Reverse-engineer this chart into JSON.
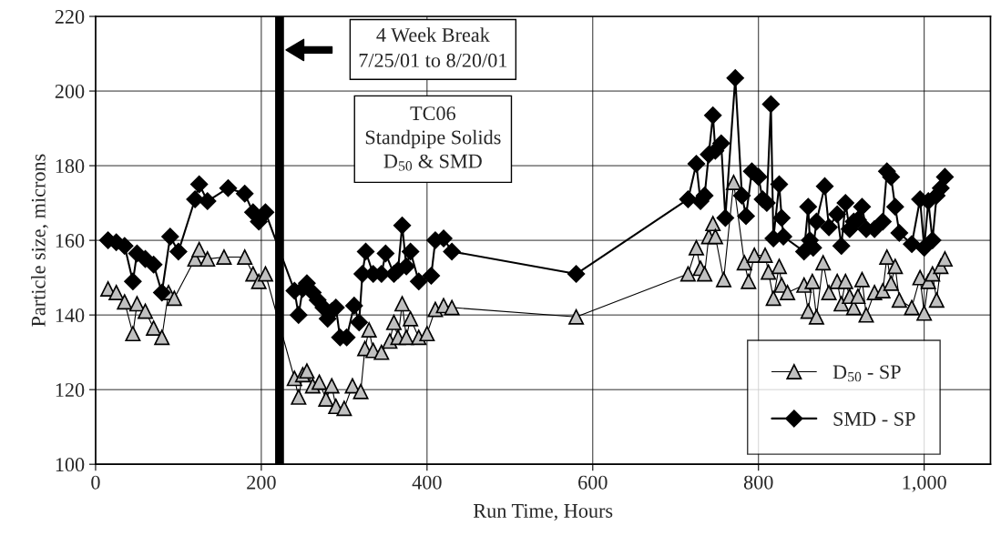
{
  "chart_data": {
    "type": "line",
    "title": "TC06\nStandpipe Solids\nD$_{50}$ & SMD",
    "xlabel": "Run Time, Hours",
    "ylabel": "Particle size, microns",
    "xlim": [
      0,
      1080
    ],
    "xticks": [
      0,
      200,
      400,
      600,
      800,
      {
        "value": 1000,
        "label": "1,000"
      }
    ],
    "ylim": [
      100,
      220
    ],
    "yticks": [
      100,
      120,
      140,
      160,
      180,
      200,
      220
    ],
    "grid": true,
    "legend": "bottom right",
    "ref_lines": [
      {
        "axis": "x",
        "value": 222,
        "color": "#000000"
      }
    ],
    "annotations": [
      "4 Week Break\n7/25/01 to 8/20/01"
    ],
    "series": [
      {
        "name": "D$_{50}$ - SP",
        "color": "#c0c0c0",
        "marker": "triangle",
        "x": [
          15,
          25,
          35,
          45,
          50,
          60,
          70,
          80,
          88,
          95,
          120,
          125,
          135,
          155,
          180,
          190,
          197,
          205,
          240,
          245,
          250,
          255,
          262,
          270,
          278,
          285,
          290,
          300,
          310,
          320,
          325,
          330,
          335,
          345,
          355,
          360,
          365,
          370,
          375,
          380,
          390,
          400,
          410,
          420,
          430,
          580,
          715,
          725,
          730,
          735,
          740,
          745,
          748,
          758,
          770,
          783,
          788,
          795,
          808,
          812,
          818,
          825,
          828,
          835,
          855,
          860,
          865,
          870,
          878,
          885,
          895,
          900,
          905,
          910,
          915,
          920,
          925,
          930,
          940,
          950,
          955,
          960,
          965,
          970,
          985,
          995,
          1000,
          1005,
          1010,
          1015,
          1020,
          1025
        ],
        "values": [
          147,
          146,
          143.5,
          135,
          143,
          141,
          136.5,
          134,
          146,
          144.5,
          155,
          157.5,
          155,
          155.5,
          155.5,
          151,
          149,
          151,
          123,
          118,
          124,
          125,
          121,
          122,
          117.5,
          121,
          115.5,
          115,
          121,
          119.5,
          131,
          136,
          130.5,
          130,
          133,
          138,
          134,
          143,
          134,
          139,
          134,
          135,
          141.5,
          142.5,
          142,
          139.5,
          151,
          158,
          152.5,
          151,
          161,
          164.5,
          161,
          149.5,
          175.5,
          154,
          149,
          156,
          156,
          151.5,
          144.5,
          153,
          148,
          146,
          148,
          141,
          149,
          139.5,
          154,
          146,
          149,
          143,
          149,
          145,
          142,
          145,
          149.5,
          140,
          146,
          146.5,
          155.5,
          148.5,
          153,
          144,
          142,
          150,
          140.5,
          149,
          151,
          144,
          153,
          155
        ]
      },
      {
        "name": "SMD - SP",
        "color": "#000000",
        "marker": "diamond",
        "x": [
          15,
          25,
          35,
          45,
          50,
          60,
          70,
          80,
          90,
          100,
          120,
          125,
          135,
          160,
          180,
          190,
          197,
          205,
          240,
          245,
          250,
          255,
          262,
          268,
          275,
          280,
          285,
          290,
          295,
          303,
          312,
          318,
          322,
          326,
          335,
          345,
          350,
          360,
          365,
          370,
          375,
          380,
          390,
          405,
          410,
          420,
          430,
          580,
          715,
          725,
          730,
          735,
          740,
          745,
          748,
          755,
          760,
          772,
          780,
          785,
          792,
          800,
          805,
          810,
          815,
          818,
          825,
          828,
          830,
          855,
          860,
          862,
          866,
          870,
          880,
          885,
          895,
          900,
          905,
          910,
          915,
          920,
          925,
          930,
          940,
          950,
          955,
          960,
          965,
          970,
          985,
          995,
          1000,
          1005,
          1010,
          1015,
          1020,
          1025
        ],
        "values": [
          160,
          159.5,
          158.5,
          149,
          156.5,
          155,
          153.5,
          146,
          161,
          157,
          171,
          175,
          170.5,
          174,
          172.5,
          167.5,
          165,
          167.5,
          146.5,
          140,
          147,
          148.5,
          146,
          144,
          142,
          139,
          141,
          142,
          134,
          134,
          142.5,
          138,
          151,
          157,
          151,
          151,
          156.5,
          151,
          152,
          164,
          153,
          157,
          149,
          150.5,
          160,
          160.5,
          157,
          151,
          171,
          180.5,
          170.5,
          172,
          183,
          193.5,
          184,
          186,
          166,
          203.5,
          172,
          166.5,
          178.5,
          177,
          171,
          170,
          196.5,
          160.5,
          175,
          166,
          161,
          157,
          169,
          160,
          158,
          165,
          174.5,
          163.5,
          167,
          158.5,
          170,
          163,
          165,
          165.5,
          169,
          163,
          163,
          165,
          178.5,
          177,
          169,
          162,
          159,
          171,
          158,
          170.5,
          160,
          172,
          174,
          177
        ]
      }
    ]
  }
}
